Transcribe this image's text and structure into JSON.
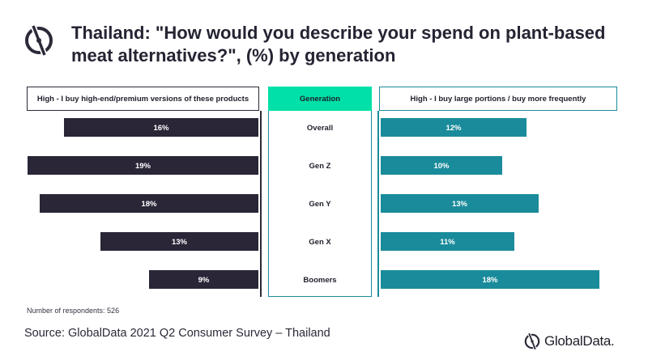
{
  "title": "Thailand: \"How would you describe your spend on plant-based meat alternatives?\", (%) by generation",
  "headers": {
    "left": "High - I buy high-end/premium versions of these products",
    "middle": "Generation",
    "right": "High - I buy large portions / buy more frequently"
  },
  "footer": {
    "note": "Number of respondents: 526",
    "source": "Source: GlobalData 2021 Q2 Consumer Survey – Thailand",
    "brand": "GlobalData."
  },
  "colors": {
    "left_bar": "#2a2638",
    "right_bar": "#1a8b9b",
    "generation_header": "#00e0a8"
  },
  "chart_data": {
    "type": "bar",
    "orientation": "horizontal-butterfly",
    "categories": [
      "Overall",
      "Gen Z",
      "Gen Y",
      "Gen X",
      "Boomers"
    ],
    "series": [
      {
        "name": "High - I buy high-end/premium versions of these products",
        "values": [
          16,
          19,
          18,
          13,
          9
        ],
        "labels": [
          "16%",
          "19%",
          "18%",
          "13%",
          "9%"
        ]
      },
      {
        "name": "High - I buy large portions / buy more frequently",
        "values": [
          12,
          10,
          13,
          11,
          18
        ],
        "labels": [
          "12%",
          "10%",
          "13%",
          "11%",
          "18%"
        ]
      }
    ],
    "unit": "%"
  }
}
